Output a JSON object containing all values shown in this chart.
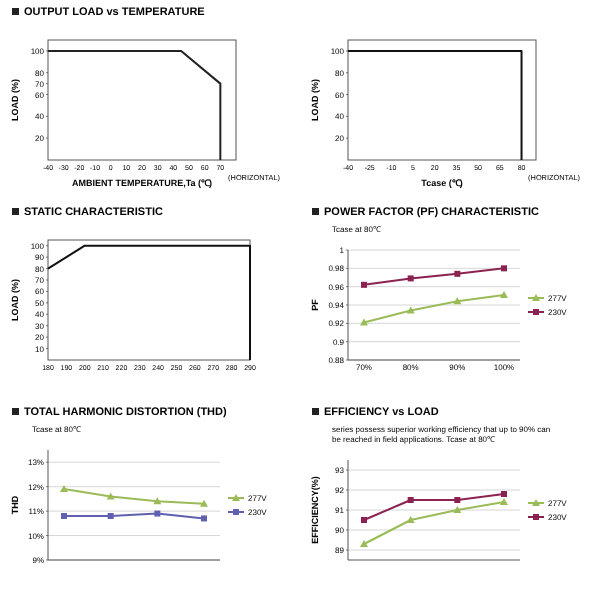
{
  "chart_data": [
    {
      "type": "line",
      "title": "OUTPUT LOAD vs TEMPERATURE",
      "xlabel": "AMBIENT TEMPERATURE,Ta (℃)",
      "ylabel": "LOAD (%)",
      "x": [
        -40,
        45,
        70,
        70
      ],
      "series": [
        {
          "color": "#222222",
          "values": [
            100,
            100,
            70,
            0
          ]
        }
      ],
      "xlim": [
        -40,
        80
      ],
      "xticks": [
        -40,
        -30,
        -20,
        -10,
        0,
        10,
        20,
        30,
        40,
        50,
        60,
        70
      ],
      "ylim": [
        0,
        110
      ],
      "yticks": [
        20,
        40,
        60,
        70,
        80,
        100
      ],
      "annotations": [
        "(HORIZONTAL)"
      ]
    },
    {
      "type": "line",
      "xlabel": "Tcase (℃)",
      "ylabel": "LOAD (%)",
      "x": [
        -40,
        80,
        80
      ],
      "series": [
        {
          "color": "#111111",
          "values": [
            100,
            100,
            0
          ]
        }
      ],
      "xlim": [
        -40,
        90
      ],
      "xticks": [
        -40,
        -25,
        -10,
        5,
        20,
        35,
        50,
        65,
        80
      ],
      "ylim": [
        0,
        110
      ],
      "yticks": [
        20,
        40,
        60,
        80,
        100
      ],
      "annotations": [
        "(HORIZONTAL)"
      ]
    },
    {
      "type": "line",
      "title": "STATIC CHARACTERISTIC",
      "ylabel": "LOAD (%)",
      "x": [
        180,
        200,
        290,
        290
      ],
      "series": [
        {
          "color": "#111111",
          "values": [
            80,
            100,
            100,
            0
          ]
        }
      ],
      "xlim": [
        180,
        290
      ],
      "xticks": [
        180,
        190,
        200,
        210,
        220,
        230,
        240,
        250,
        260,
        270,
        280,
        290
      ],
      "ylim": [
        0,
        105
      ],
      "yticks": [
        10,
        20,
        30,
        40,
        50,
        60,
        70,
        80,
        90,
        100
      ]
    },
    {
      "type": "line",
      "title": "POWER FACTOR (PF) CHARACTERISTIC",
      "subtitle": "Tcase at 80℃",
      "ylabel": "PF",
      "categories": [
        "70%",
        "80%",
        "90%",
        "100%"
      ],
      "series": [
        {
          "name": "277V",
          "color": "#9bbb59",
          "marker": "triangle",
          "values": [
            0.921,
            0.934,
            0.944,
            0.951
          ]
        },
        {
          "name": "230V",
          "color": "#8b2252",
          "marker": "square",
          "values": [
            0.962,
            0.969,
            0.974,
            0.98
          ]
        }
      ],
      "ylim": [
        0.88,
        1
      ],
      "yticks": [
        0.88,
        0.9,
        0.92,
        0.94,
        0.96,
        0.98,
        1
      ],
      "grid": "y",
      "legend": "right"
    },
    {
      "type": "line",
      "title": "TOTAL HARMONIC DISTORTION (THD)",
      "subtitle": "Tcase at 80℃",
      "ylabel": "THD",
      "categories": [
        null,
        null,
        null,
        null
      ],
      "series": [
        {
          "name": "277V",
          "color": "#9bbb59",
          "marker": "triangle",
          "values": [
            11.9,
            11.6,
            11.4,
            11.3
          ]
        },
        {
          "name": "230V",
          "color": "#6060b0",
          "marker": "square",
          "values": [
            10.8,
            10.8,
            10.9,
            10.7
          ]
        }
      ],
      "ylim": [
        9,
        13.5
      ],
      "yticks": [
        {
          "value": 9,
          "label": "9%"
        },
        {
          "value": 10,
          "label": "10%"
        },
        {
          "value": 11,
          "label": "11%"
        },
        {
          "value": 12,
          "label": "12%"
        },
        {
          "value": 13,
          "label": "13%"
        }
      ],
      "grid": "y",
      "legend": "right",
      "tick_labels": "y"
    },
    {
      "type": "line",
      "title": "EFFICIENCY vs LOAD",
      "subtitle": "series possess superior working efficiency that up to 90% can be reached in field applications. Tcase at 80℃",
      "ylabel": "EFFICIENCY(%)",
      "categories": [
        null,
        null,
        null,
        null
      ],
      "series": [
        {
          "name": "277V",
          "color": "#9bbb59",
          "marker": "triangle",
          "values": [
            89.3,
            90.5,
            91,
            91.4
          ]
        },
        {
          "name": "230V",
          "color": "#8b2252",
          "marker": "square",
          "values": [
            90.5,
            91.5,
            91.5,
            91.8
          ]
        }
      ],
      "ylim": [
        88.5,
        93.5
      ],
      "yticks": [
        89,
        90,
        91,
        92,
        93
      ],
      "grid": "y",
      "legend": "right",
      "tick_labels": "y"
    }
  ]
}
